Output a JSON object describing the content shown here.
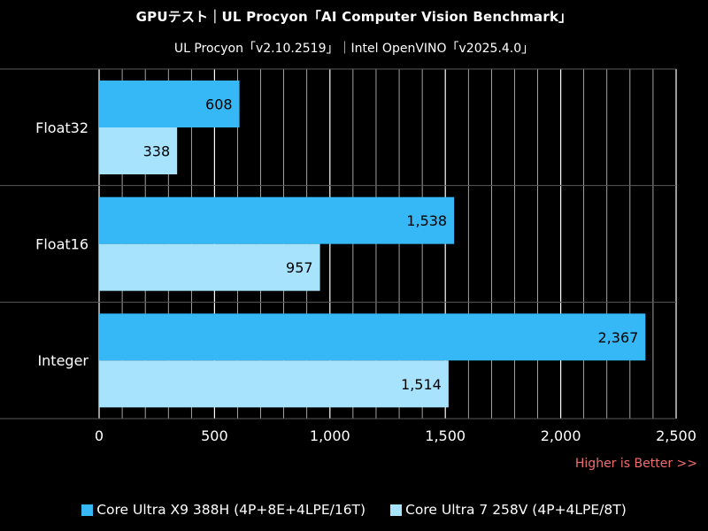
{
  "header": {
    "title": "GPUテスト｜UL Procyon「AI Computer Vision Benchmark」",
    "subtitle": "UL Procyon「v2.10.2519」｜Intel OpenVINO「v2025.4.0」"
  },
  "note": "Higher is Better >>",
  "colors": {
    "background": "#000000",
    "plot_bg": "#000000",
    "grid": "#ffffff",
    "separator": "#5a5a5a",
    "series1": "#35b8f5",
    "series2": "#a7e3fd",
    "note": "#f06e6e",
    "text_light": "#ffffff",
    "text_dark": "#000000"
  },
  "chart_data": {
    "type": "bar",
    "orientation": "horizontal",
    "categories": [
      "Float32",
      "Float16",
      "Integer"
    ],
    "series": [
      {
        "name": "Core Ultra X9 388H (4P+8E+4LPE/16T)",
        "values": [
          608,
          1538,
          2367
        ]
      },
      {
        "name": "Core Ultra 7 258V (4P+4LPE/8T)",
        "values": [
          338,
          957,
          1514
        ]
      }
    ],
    "value_labels": [
      [
        "608",
        "1,538",
        "2,367"
      ],
      [
        "338",
        "957",
        "1,514"
      ]
    ],
    "xlim": [
      0,
      2500
    ],
    "major_ticks": [
      0,
      500,
      1000,
      1500,
      2000,
      2500
    ],
    "tick_labels": [
      "0",
      "500",
      "1,000",
      "1,500",
      "2,000",
      "2,500"
    ],
    "minor_step": 100,
    "grid": true,
    "legend_position": "bottom",
    "xlabel": "",
    "ylabel": ""
  }
}
